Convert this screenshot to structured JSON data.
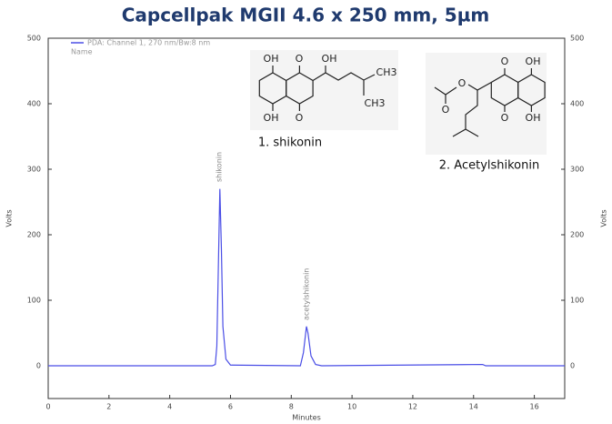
{
  "chart_data": {
    "type": "line",
    "title": "Capcellpak MGII 4.6 x 250 mm, 5µm",
    "x_label": "Minutes",
    "y_label": "Volts",
    "y2_label": "Volts",
    "legend": {
      "entry": "PDA: Channel 1, 270 nm/Bw:8 nm",
      "subtitle": "Name"
    },
    "peak_labels": [
      "shikonin",
      "acetylshikonin"
    ],
    "x": [
      0,
      5.4,
      5.5,
      5.55,
      5.6,
      5.65,
      5.7,
      5.75,
      5.85,
      6.0,
      8.3,
      8.4,
      8.5,
      8.55,
      8.65,
      8.8,
      9.0,
      14.3,
      14.4,
      17
    ],
    "series": [
      {
        "name": "PDA: Channel 1, 270 nm/Bw:8 nm",
        "color": "#4a4ee6",
        "values": [
          0,
          0,
          2,
          30,
          150,
          270,
          180,
          60,
          10,
          1,
          0,
          20,
          60,
          50,
          15,
          2,
          0,
          2,
          0,
          0
        ]
      }
    ],
    "xlim": [
      0,
      17
    ],
    "xticks": [
      0,
      2,
      4,
      6,
      8,
      10,
      12,
      14,
      16
    ],
    "ylim": [
      -50,
      500
    ],
    "yticks": [
      0,
      100,
      200,
      300,
      400,
      500
    ],
    "y2lim": [
      -50,
      500
    ],
    "y2ticks": [
      0,
      100,
      200,
      300,
      400,
      500
    ],
    "structures": [
      {
        "caption": "1. shikonin",
        "labels": [
          "OH",
          "O",
          "OH",
          "O",
          "OH",
          "CH3",
          "CH3"
        ]
      },
      {
        "caption": "2. Acetylshikonin",
        "labels": [
          "O",
          "OH",
          "O",
          "OH",
          "O",
          "O"
        ]
      }
    ]
  }
}
